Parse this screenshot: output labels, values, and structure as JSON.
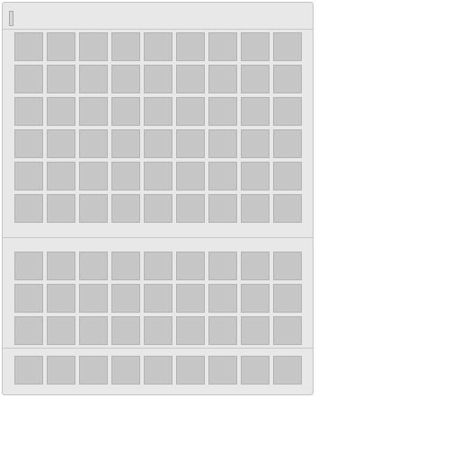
{
  "window": {
    "title": ""
  },
  "sections": [
    {
      "name": "main-storage",
      "rows": 6,
      "cols": 9
    },
    {
      "name": "inventory",
      "rows": 3,
      "cols": 9
    },
    {
      "name": "hotbar",
      "rows": 1,
      "cols": 9
    }
  ],
  "colors": {
    "window_bg": "#e8e8e8",
    "slot_bg": "#c6c6c6",
    "slot_border": "#b3b3b3",
    "divider": "#c8c8c8"
  }
}
